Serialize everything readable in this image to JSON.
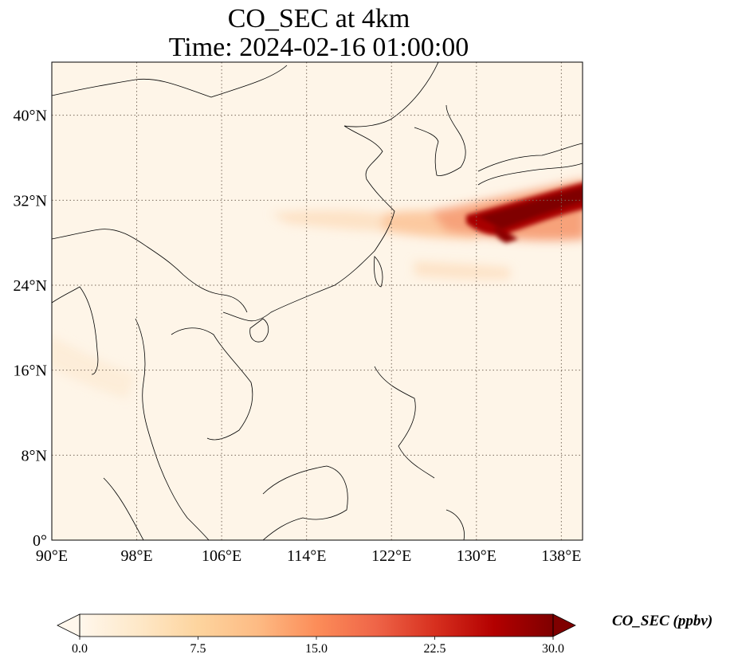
{
  "title": {
    "line1": "CO_SEC at 4km",
    "line2": "Time: 2024-02-16 01:00:00"
  },
  "axes": {
    "lon_ticks": [
      "90°E",
      "98°E",
      "106°E",
      "114°E",
      "122°E",
      "130°E",
      "138°E"
    ],
    "lat_ticks": [
      "0°",
      "8°N",
      "16°N",
      "24°N",
      "32°N",
      "40°N"
    ],
    "lon_range": [
      90,
      140
    ],
    "lat_range": [
      0,
      45
    ]
  },
  "colorbar": {
    "label": "CO_SEC (ppbv)",
    "ticks": [
      "0.0",
      "7.5",
      "15.0",
      "22.5",
      "30.0"
    ],
    "range": [
      0,
      30
    ],
    "colormap": "OrRd",
    "colors": [
      "#fff7ec",
      "#fee8c8",
      "#fdd49e",
      "#fdbb84",
      "#fc8d59",
      "#ef6548",
      "#d7301f",
      "#b30000",
      "#7f0000"
    ],
    "extend": "both"
  },
  "map": {
    "background_color": "#fef5e8",
    "gridlines": "dotted"
  }
}
